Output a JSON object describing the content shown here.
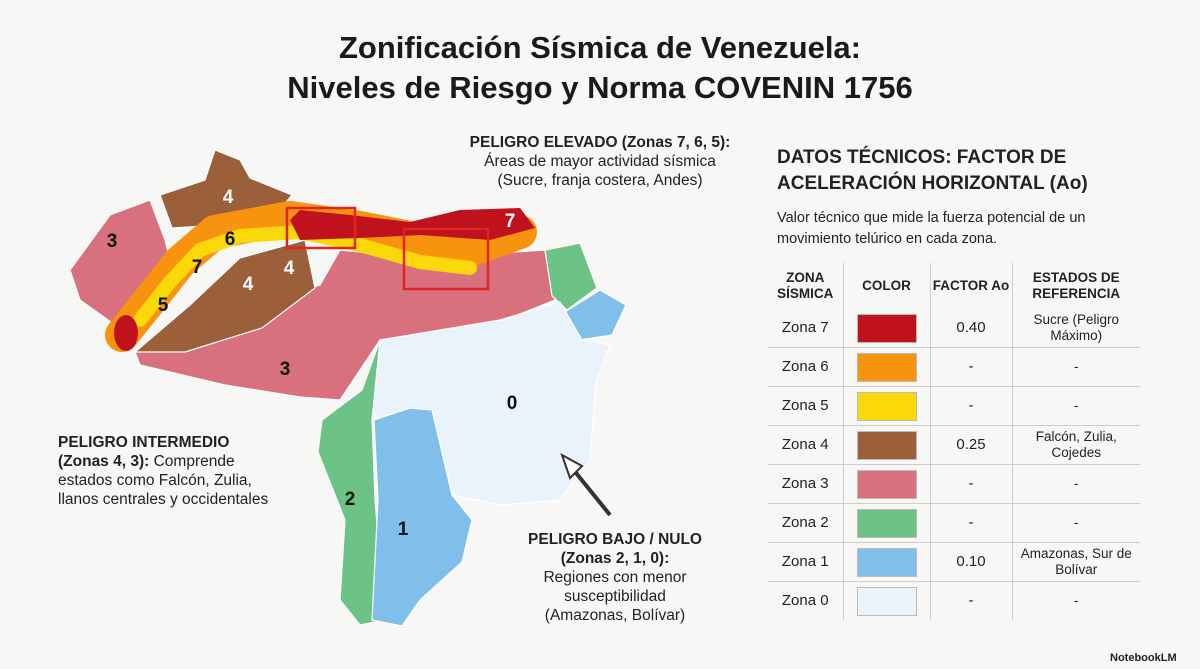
{
  "title": [
    "Zonificación Sísmica de Venezuela:",
    "Niveles de Riesgo y Norma COVENIN 1756"
  ],
  "map": {
    "zone_labels": [
      "3",
      "4",
      "6",
      "7",
      "5",
      "4",
      "4",
      "3",
      "0",
      "2",
      "1",
      "7"
    ]
  },
  "annotations": {
    "high": {
      "heading": "PELIGRO ELEVADO (Zonas 7, 6, 5):",
      "lines": [
        "Áreas de mayor actividad sísmica",
        "(Sucre, franja costera, Andes)"
      ]
    },
    "intermediate": {
      "heading": "PELIGRO INTERMEDIO (Zonas 4, 3):",
      "body": "Comprende estados como Falcón, Zulia, llanos centrales y occidentales"
    },
    "low": {
      "heading": [
        "PELIGRO BAJO / NULO",
        "(Zonas 2, 1, 0):"
      ],
      "lines": [
        "Regiones con menor",
        "susceptibilidad",
        "(Amazonas, Bolívar)"
      ]
    }
  },
  "panel": {
    "heading": [
      "DATOS TÉCNICOS: FACTOR DE",
      "ACELERACIÓN HORIZONTAL (Ao)"
    ],
    "description": "Valor técnico que mide la fuerza potencial de un movimiento telúrico en cada zona.",
    "table": {
      "headers": [
        "ZONA SÍSMICA",
        "COLOR",
        "FACTOR Ao",
        "ESTADOS DE REFERENCIA"
      ],
      "rows": [
        {
          "zone": "Zona 7",
          "color": "#c0121d",
          "factor": "0.40",
          "states": "Sucre (Peligro Máximo)"
        },
        {
          "zone": "Zona 6",
          "color": "#f7930f",
          "factor": "-",
          "states": "-"
        },
        {
          "zone": "Zona 5",
          "color": "#fbd80a",
          "factor": "-",
          "states": "-"
        },
        {
          "zone": "Zona 4",
          "color": "#9b5f3a",
          "factor": "0.25",
          "states": "Falcón, Zulia, Cojedes"
        },
        {
          "zone": "Zona 3",
          "color": "#d9707e",
          "factor": "-",
          "states": "-"
        },
        {
          "zone": "Zona 2",
          "color": "#6cc385",
          "factor": "-",
          "states": "-"
        },
        {
          "zone": "Zona 1",
          "color": "#7fbfe9",
          "factor": "0.10",
          "states": "Amazonas, Sur de Bolívar"
        },
        {
          "zone": "Zona 0",
          "color": "#eaf2fb",
          "factor": "-",
          "states": "-"
        }
      ]
    }
  },
  "footer": "NotebookLM"
}
